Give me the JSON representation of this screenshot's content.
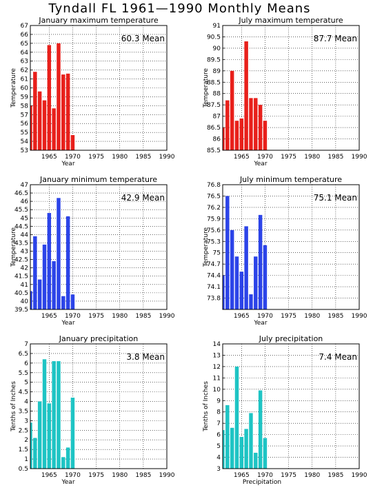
{
  "title": "Tyndall FL   1961—1990 Monthly Means",
  "chart_data": [
    {
      "type": "bar",
      "title": "January maximum temperature",
      "mean_label": "60.3 Mean",
      "xlabel": "Year",
      "ylabel": "Temperature",
      "xlim": [
        1961,
        1990
      ],
      "ylim": [
        53,
        67
      ],
      "xticks": [
        "1965",
        "1970",
        "1975",
        "1980",
        "1985",
        "1990"
      ],
      "yticks": [
        "53",
        "54",
        "55",
        "56",
        "57",
        "58",
        "59",
        "60",
        "61",
        "62",
        "63",
        "64",
        "65",
        "66",
        "67"
      ],
      "color": "#e8201b",
      "x": [
        1961,
        1962,
        1963,
        1964,
        1965,
        1966,
        1967,
        1968,
        1969,
        1970
      ],
      "values": [
        58.0,
        61.8,
        59.6,
        58.6,
        64.8,
        57.7,
        65.0,
        61.5,
        61.6,
        54.7
      ],
      "grid": true
    },
    {
      "type": "bar",
      "title": "July maximum temperature",
      "mean_label": "87.7 Mean",
      "xlabel": "Year",
      "ylabel": "Temperature",
      "xlim": [
        1961,
        1990
      ],
      "ylim": [
        85.5,
        91
      ],
      "xticks": [
        "1965",
        "1970",
        "1975",
        "1980",
        "1985",
        "1990"
      ],
      "yticks": [
        "85.5",
        "86",
        "86.5",
        "87",
        "87.5",
        "88",
        "88.5",
        "89",
        "89.5",
        "90",
        "90.5",
        "91"
      ],
      "color": "#e8201b",
      "x": [
        1961,
        1962,
        1963,
        1964,
        1965,
        1966,
        1967,
        1968,
        1969,
        1970
      ],
      "values": [
        86.5,
        87.7,
        89.0,
        86.8,
        86.9,
        90.3,
        87.8,
        87.8,
        87.5,
        86.8
      ],
      "grid": true
    },
    {
      "type": "bar",
      "title": "January minimum temperature",
      "mean_label": "42.9 Mean",
      "xlabel": "Year",
      "ylabel": "Temperature",
      "xlim": [
        1961,
        1990
      ],
      "ylim": [
        39.5,
        47
      ],
      "xticks": [
        "1965",
        "1970",
        "1975",
        "1980",
        "1985",
        "1990"
      ],
      "yticks": [
        "39.5",
        "40",
        "40.5",
        "41",
        "41.5",
        "42",
        "42.5",
        "43",
        "43.5",
        "44",
        "44.5",
        "45",
        "45.5",
        "46",
        "46.5",
        "47"
      ],
      "color": "#2c44e8",
      "x": [
        1961,
        1962,
        1963,
        1964,
        1965,
        1966,
        1967,
        1968,
        1969,
        1970
      ],
      "values": [
        40.6,
        43.9,
        41.3,
        43.4,
        45.3,
        42.4,
        46.2,
        40.3,
        45.1,
        40.4
      ],
      "grid": true
    },
    {
      "type": "bar",
      "title": "July minimum temperature",
      "mean_label": "75.1 Mean",
      "xlabel": "Year",
      "ylabel": "Temperature",
      "xlim": [
        1961,
        1990
      ],
      "ylim": [
        73.5,
        76.8
      ],
      "xticks": [
        "1965",
        "1970",
        "1975",
        "1980",
        "1985",
        "1990"
      ],
      "yticks": [
        "73.8",
        "74.1",
        "74.4",
        "74.7",
        "75",
        "75.3",
        "75.6",
        "75.9",
        "76.2",
        "76.5",
        "76.8"
      ],
      "color": "#2c44e8",
      "x": [
        1961,
        1962,
        1963,
        1964,
        1965,
        1966,
        1967,
        1968,
        1969,
        1970
      ],
      "values": [
        74.4,
        76.5,
        75.6,
        74.9,
        74.5,
        75.7,
        73.9,
        74.9,
        76.0,
        75.2
      ],
      "grid": true
    },
    {
      "type": "bar",
      "title": "January precipitation",
      "mean_label": "3.8 Mean",
      "xlabel": "Year",
      "ylabel": "Tenths of Inches",
      "xlim": [
        1961,
        1990
      ],
      "ylim": [
        0.5,
        7
      ],
      "xticks": [
        "1965",
        "1970",
        "1975",
        "1980",
        "1985",
        "1990"
      ],
      "yticks": [
        "0.5",
        "1",
        "1.5",
        "2",
        "2.5",
        "3",
        "3.5",
        "4",
        "4.5",
        "5",
        "5.5",
        "6",
        "6.5",
        "7"
      ],
      "color": "#1ec4c4",
      "x": [
        1961,
        1962,
        1963,
        1964,
        1965,
        1966,
        1967,
        1968,
        1969,
        1970
      ],
      "values": [
        2.9,
        2.1,
        4.0,
        6.2,
        3.9,
        6.1,
        6.1,
        1.1,
        1.6,
        4.2
      ],
      "grid": true
    },
    {
      "type": "bar",
      "title": "July precipitation",
      "mean_label": "7.4 Mean",
      "xlabel": "Precipitation",
      "ylabel": "Tenths of Inches",
      "xlim": [
        1961,
        1990
      ],
      "ylim": [
        3,
        14
      ],
      "xticks": [
        "1965",
        "1970",
        "1975",
        "1980",
        "1985",
        "1990"
      ],
      "yticks": [
        "3",
        "4",
        "5",
        "6",
        "7",
        "8",
        "9",
        "10",
        "11",
        "12",
        "13",
        "14"
      ],
      "color": "#1ec4c4",
      "x": [
        1961,
        1962,
        1963,
        1964,
        1965,
        1966,
        1967,
        1968,
        1969,
        1970
      ],
      "values": [
        6.4,
        8.6,
        6.6,
        12.0,
        5.8,
        6.5,
        7.9,
        4.4,
        9.9,
        5.7
      ],
      "grid": true
    }
  ]
}
